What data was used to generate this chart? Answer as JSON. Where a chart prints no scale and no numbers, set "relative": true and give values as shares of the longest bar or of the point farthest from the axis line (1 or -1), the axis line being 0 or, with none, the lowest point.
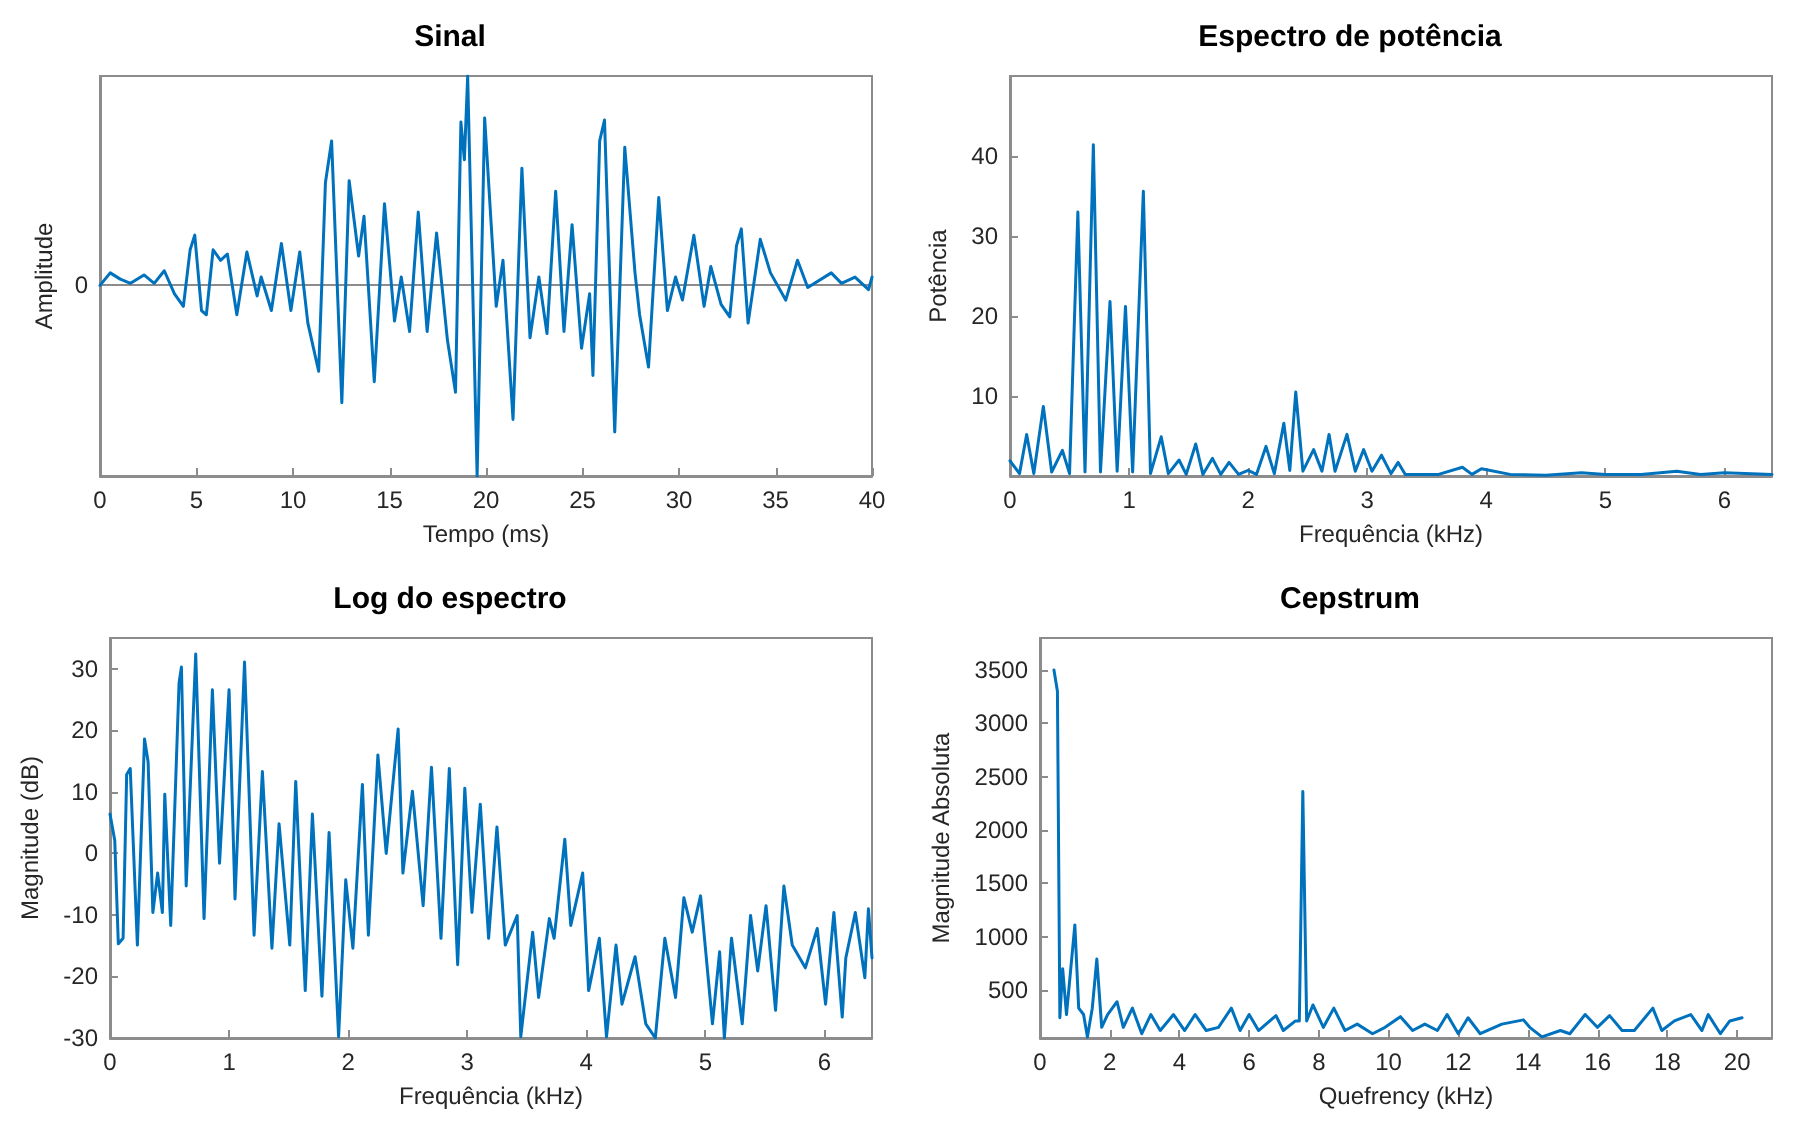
{
  "chart_data": [
    {
      "type": "line",
      "title": "Sinal",
      "xlabel": "Tempo (ms)",
      "ylabel": "Amplitude",
      "relative": true,
      "annotations": [
        "0"
      ],
      "xlim": [
        0,
        40
      ],
      "xticks": [
        0,
        5,
        10,
        15,
        20,
        25,
        30,
        35,
        40
      ],
      "grid": false,
      "marker": "none",
      "line_style": "solid",
      "series": [
        {
          "color": "#0072bd",
          "x": [
            0,
            0.53,
            1.05,
            1.58,
            2.28,
            2.81,
            3.33,
            3.86,
            4.32,
            4.67,
            4.91,
            5.26,
            5.51,
            5.86,
            6.25,
            6.6,
            7.09,
            7.61,
            8.14,
            8.35,
            8.88,
            9.4,
            9.89,
            10.35,
            10.77,
            11.33,
            11.68,
            12.0,
            12.53,
            12.91,
            13.4,
            13.68,
            14.21,
            14.74,
            15.26,
            15.61,
            16.04,
            16.49,
            16.95,
            17.44,
            18.0,
            18.42,
            18.7,
            18.88,
            19.05,
            19.54,
            19.93,
            20.53,
            20.88,
            21.4,
            21.86,
            22.28,
            22.74,
            23.16,
            23.61,
            24.04,
            24.46,
            24.95,
            25.37,
            25.54,
            25.89,
            26.14,
            26.67,
            27.19,
            27.72,
            27.96,
            28.42,
            28.95,
            29.4,
            29.82,
            30.18,
            30.77,
            31.3,
            31.65,
            32.18,
            32.63,
            32.98,
            33.23,
            33.58,
            34.21,
            34.74,
            35.53,
            36.14,
            36.67,
            37.89,
            38.42,
            39.12,
            39.82,
            40
          ],
          "values": [
            0.0,
            0.06,
            0.03,
            0.01,
            0.05,
            0.01,
            0.07,
            -0.04,
            -0.1,
            0.17,
            0.24,
            -0.12,
            -0.14,
            0.17,
            0.12,
            0.15,
            -0.14,
            0.16,
            -0.05,
            0.04,
            -0.12,
            0.2,
            -0.12,
            0.16,
            -0.18,
            -0.41,
            0.49,
            0.69,
            -0.56,
            0.5,
            0.14,
            0.33,
            -0.46,
            0.39,
            -0.17,
            0.04,
            -0.22,
            0.35,
            -0.22,
            0.25,
            -0.26,
            -0.51,
            0.78,
            0.6,
            1.0,
            -0.91,
            0.8,
            -0.1,
            0.12,
            -0.64,
            0.56,
            -0.25,
            0.04,
            -0.23,
            0.45,
            -0.22,
            0.29,
            -0.3,
            -0.04,
            -0.43,
            0.69,
            0.79,
            -0.7,
            0.66,
            0.06,
            -0.14,
            -0.39,
            0.42,
            -0.12,
            0.04,
            -0.07,
            0.24,
            -0.1,
            0.09,
            -0.09,
            -0.15,
            0.19,
            0.27,
            -0.18,
            0.22,
            0.06,
            -0.07,
            0.12,
            -0.01,
            0.06,
            0.01,
            0.04,
            -0.02,
            0.04
          ]
        }
      ]
    },
    {
      "type": "line",
      "title": "Espectro de potência",
      "xlabel": "Frequência (kHz)",
      "ylabel": "Potência",
      "xlim": [
        0,
        6.4
      ],
      "xticks": [
        0,
        1,
        2,
        3,
        4,
        5,
        6
      ],
      "ylim": [
        0,
        50
      ],
      "yticks": [
        10,
        20,
        30,
        40
      ],
      "grid": false,
      "marker": "none",
      "line_style": "solid",
      "series": [
        {
          "color": "#0072bd",
          "x": [
            0,
            0.08,
            0.14,
            0.2,
            0.28,
            0.35,
            0.44,
            0.5,
            0.57,
            0.63,
            0.7,
            0.76,
            0.84,
            0.9,
            0.97,
            1.03,
            1.12,
            1.18,
            1.27,
            1.33,
            1.42,
            1.48,
            1.56,
            1.62,
            1.7,
            1.77,
            1.84,
            1.92,
            2.0,
            2.07,
            2.15,
            2.22,
            2.3,
            2.35,
            2.4,
            2.46,
            2.55,
            2.62,
            2.68,
            2.73,
            2.83,
            2.9,
            2.97,
            3.04,
            3.12,
            3.2,
            3.26,
            3.32,
            3.6,
            3.8,
            3.88,
            3.96,
            4.2,
            4.5,
            4.8,
            5.0,
            5.3,
            5.6,
            5.8,
            6.0,
            6.4
          ],
          "values": [
            1.9,
            0.3,
            5.2,
            0.3,
            8.7,
            0.5,
            3.2,
            0.3,
            33,
            0.5,
            41.4,
            0.5,
            21.8,
            0.6,
            21.2,
            0.5,
            35.6,
            0.3,
            4.9,
            0.3,
            2,
            0.2,
            4,
            0.2,
            2.2,
            0.2,
            1.7,
            0.2,
            0.7,
            0.2,
            3.7,
            0.3,
            6.6,
            0.7,
            10.5,
            0.6,
            3.3,
            0.6,
            5.2,
            0.6,
            5.2,
            0.6,
            3.3,
            0.6,
            2.6,
            0.3,
            1.7,
            0.2,
            0.2,
            1.1,
            0.2,
            0.9,
            0.2,
            0.1,
            0.4,
            0.2,
            0.2,
            0.6,
            0.2,
            0.4,
            0.2
          ]
        }
      ]
    },
    {
      "type": "line",
      "title": "Log do espectro",
      "xlabel": "Frequência (kHz)",
      "ylabel": "Magnitude (dB)",
      "xlim": [
        0,
        6.4
      ],
      "xticks": [
        0,
        1,
        2,
        3,
        4,
        5,
        6
      ],
      "ylim": [
        -30,
        35
      ],
      "yticks": [
        -30,
        -20,
        -10,
        0,
        10,
        20,
        30
      ],
      "grid": false,
      "marker": "none",
      "line_style": "solid",
      "series": [
        {
          "color": "#0072bd",
          "x": [
            0,
            0.04,
            0.07,
            0.11,
            0.14,
            0.17,
            0.23,
            0.29,
            0.32,
            0.36,
            0.4,
            0.44,
            0.46,
            0.51,
            0.58,
            0.6,
            0.64,
            0.72,
            0.79,
            0.86,
            0.92,
            1.0,
            1.05,
            1.13,
            1.21,
            1.28,
            1.36,
            1.42,
            1.51,
            1.56,
            1.64,
            1.7,
            1.78,
            1.84,
            1.92,
            1.98,
            2.04,
            2.12,
            2.17,
            2.25,
            2.32,
            2.42,
            2.46,
            2.54,
            2.63,
            2.7,
            2.78,
            2.85,
            2.92,
            2.98,
            3.04,
            3.11,
            3.18,
            3.25,
            3.32,
            3.42,
            3.45,
            3.55,
            3.6,
            3.69,
            3.73,
            3.82,
            3.87,
            3.97,
            4.02,
            4.11,
            4.17,
            4.25,
            4.3,
            4.41,
            4.5,
            4.58,
            4.66,
            4.75,
            4.82,
            4.89,
            4.96,
            5.06,
            5.12,
            5.16,
            5.22,
            5.31,
            5.38,
            5.44,
            5.51,
            5.59,
            5.66,
            5.73,
            5.84,
            5.94,
            6.01,
            6.08,
            6.15,
            6.18,
            6.26,
            6.34,
            6.37,
            6.4
          ],
          "values": [
            6.4,
            2.1,
            -14.7,
            -13.8,
            12.8,
            13.8,
            -14.9,
            18.6,
            14.9,
            -9.6,
            -3.2,
            -9.6,
            9.6,
            -11.7,
            27.7,
            30.3,
            -5.3,
            32.4,
            -10.6,
            26.6,
            -1.6,
            26.6,
            -7.4,
            31.1,
            -13.3,
            13.3,
            -15.4,
            4.8,
            -14.9,
            11.7,
            -22.3,
            6.4,
            -23.2,
            3.4,
            -29.8,
            -4.3,
            -15.4,
            11.2,
            -13.3,
            16,
            0,
            20.2,
            -3.2,
            10.1,
            -8.5,
            14,
            -13.8,
            13.8,
            -18.1,
            10.6,
            -9.6,
            8,
            -13.8,
            4.3,
            -14.9,
            -10.1,
            -29.8,
            -12.8,
            -23.4,
            -10.6,
            -13.8,
            2.3,
            -11.7,
            -3.2,
            -22.3,
            -13.8,
            -29.8,
            -14.9,
            -24.5,
            -16.8,
            -27.7,
            -30,
            -13.8,
            -23.4,
            -7.2,
            -12.8,
            -6.9,
            -27.7,
            -16,
            -30,
            -13.8,
            -27.7,
            -10.1,
            -19.1,
            -8.5,
            -25.5,
            -5.3,
            -14.9,
            -18.6,
            -12.2,
            -24.5,
            -9.6,
            -26.6,
            -17,
            -9.6,
            -20.2,
            -9,
            -17
          ]
        }
      ]
    },
    {
      "type": "line",
      "title": "Cepstrum",
      "xlabel": "Quefrency (kHz)",
      "ylabel": "Magnitude Absoluta",
      "xlim": [
        0,
        21
      ],
      "xticks": [
        0,
        2,
        4,
        6,
        8,
        10,
        12,
        14,
        16,
        18,
        20
      ],
      "ylim": [
        50,
        3800
      ],
      "yticks": [
        500,
        1000,
        1500,
        2000,
        2500,
        3000,
        3500
      ],
      "grid": false,
      "marker": "none",
      "line_style": "solid",
      "series": [
        {
          "color": "#0072bd",
          "x": [
            0.4,
            0.5,
            0.57,
            0.65,
            0.76,
            1.0,
            1.11,
            1.25,
            1.36,
            1.5,
            1.63,
            1.77,
            1.94,
            2.21,
            2.39,
            2.65,
            2.92,
            3.18,
            3.45,
            3.83,
            4.15,
            4.45,
            4.77,
            5.12,
            5.49,
            5.74,
            6.0,
            6.27,
            6.77,
            6.98,
            7.33,
            7.44,
            7.54,
            7.65,
            7.83,
            8.13,
            8.43,
            8.75,
            9.1,
            9.54,
            9.9,
            10.34,
            10.69,
            11.04,
            11.4,
            11.68,
            12.0,
            12.28,
            12.63,
            13.25,
            13.87,
            14.05,
            14.4,
            14.93,
            15.2,
            15.64,
            15.99,
            16.34,
            16.7,
            17.05,
            17.58,
            17.84,
            18.2,
            18.67,
            18.99,
            19.17,
            19.52,
            19.79,
            20.14
          ],
          "values": [
            3500,
            3300,
            240,
            700,
            270,
            1110,
            330,
            270,
            60,
            330,
            790,
            150,
            270,
            390,
            150,
            330,
            90,
            270,
            120,
            270,
            120,
            270,
            120,
            150,
            330,
            120,
            270,
            120,
            260,
            120,
            210,
            210,
            2360,
            210,
            360,
            150,
            330,
            120,
            180,
            90,
            150,
            250,
            120,
            180,
            120,
            270,
            90,
            240,
            90,
            180,
            220,
            150,
            60,
            120,
            90,
            270,
            150,
            260,
            120,
            120,
            330,
            120,
            210,
            270,
            120,
            270,
            90,
            210,
            240
          ]
        }
      ]
    }
  ]
}
